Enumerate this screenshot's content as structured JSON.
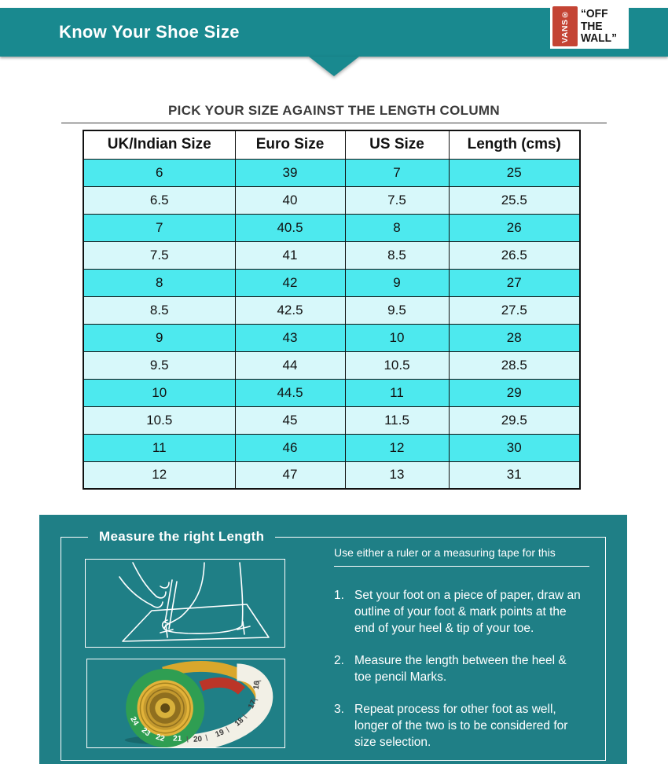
{
  "colors": {
    "header_teal": "#19898F",
    "section_teal": "#1F7F86",
    "row_cyan": "#4DE9EE",
    "row_light": "#D7F8FA",
    "vans_red": "#C44434",
    "title_gray": "#3B3B3B"
  },
  "header": {
    "title": "Know Your Shoe Size",
    "logo": {
      "brand": "VANS®",
      "line1": "“OFF",
      "line2": "THE",
      "line3": "WALL”"
    }
  },
  "size_guide": {
    "title": "PICK YOUR SIZE AGAINST THE LENGTH COLUMN"
  },
  "chart_data": {
    "type": "table",
    "columns": [
      "UK/Indian Size",
      "Euro Size",
      "US Size",
      "Length (cms)"
    ],
    "rows": [
      [
        "6",
        "39",
        "7",
        "25"
      ],
      [
        "6.5",
        "40",
        "7.5",
        "25.5"
      ],
      [
        "7",
        "40.5",
        "8",
        "26"
      ],
      [
        "7.5",
        "41",
        "8.5",
        "26.5"
      ],
      [
        "8",
        "42",
        "9",
        "27"
      ],
      [
        "8.5",
        "42.5",
        "9.5",
        "27.5"
      ],
      [
        "9",
        "43",
        "10",
        "28"
      ],
      [
        "9.5",
        "44",
        "10.5",
        "28.5"
      ],
      [
        "10",
        "44.5",
        "11",
        "29"
      ],
      [
        "10.5",
        "45",
        "11.5",
        "29.5"
      ],
      [
        "11",
        "46",
        "12",
        "30"
      ],
      [
        "12",
        "47",
        "13",
        "31"
      ]
    ]
  },
  "measure": {
    "title": "Measure the right Length",
    "subtitle": "Use either a ruler or a measuring tape for this",
    "steps": [
      {
        "num": "1.",
        "text": "Set your foot on a piece of paper, draw an\noutline of your foot & mark points at the\nend of your heel & tip of your toe."
      },
      {
        "num": "2.",
        "text": "Measure the length between the heel &\ntoe  pencil Marks."
      },
      {
        "num": "3.",
        "text": "Repeat process for other foot as well,\nlonger of the two is to be considered for\nsize selection."
      }
    ],
    "images": {
      "foot_outline": "foot-outline-illustration",
      "measuring_tape": "measuring-tape-photo"
    }
  }
}
